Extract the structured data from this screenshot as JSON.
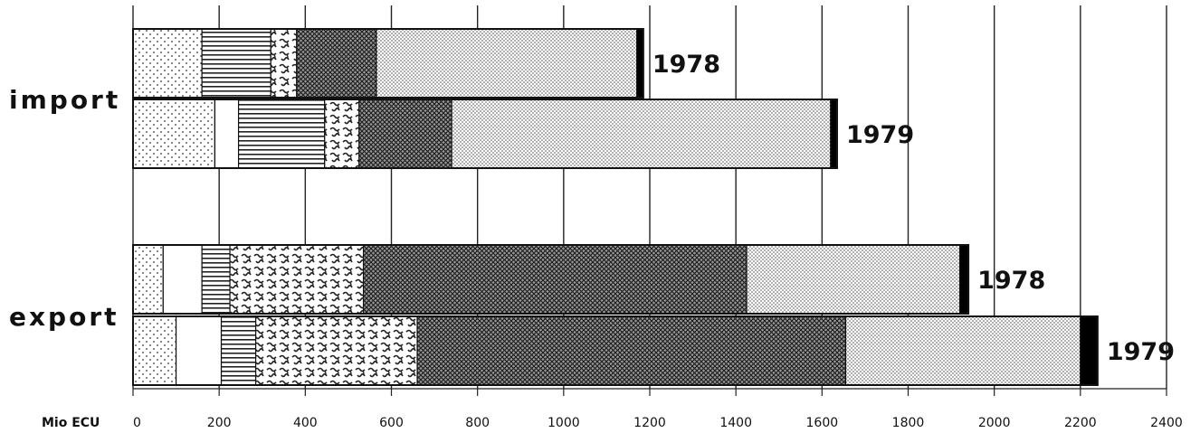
{
  "chart_data": {
    "type": "bar",
    "orientation": "horizontal",
    "stacked": true,
    "title": "",
    "unit_label": "Mio ECU",
    "xlim": [
      0,
      2400
    ],
    "x_ticks": [
      0,
      200,
      400,
      600,
      800,
      1000,
      1200,
      1400,
      1600,
      1800,
      2000,
      2200,
      2400
    ],
    "grid": true,
    "legend": "none",
    "groups": [
      {
        "label": "import",
        "bars": [
          {
            "year": "1978",
            "segments": [
              160,
              0,
              160,
              60,
              185,
              605,
              15
            ]
          },
          {
            "year": "1979",
            "segments": [
              190,
              55,
              200,
              80,
              215,
              880,
              15
            ]
          }
        ]
      },
      {
        "label": "export",
        "bars": [
          {
            "year": "1978",
            "segments": [
              70,
              90,
              65,
              310,
              890,
              495,
              20
            ]
          },
          {
            "year": "1979",
            "segments": [
              100,
              105,
              80,
              375,
              995,
              545,
              40
            ]
          }
        ]
      }
    ],
    "segment_patterns": [
      "sparse-dots",
      "blank",
      "horizontal-lines",
      "squiggles",
      "dense-crosshatch",
      "fine-stipple",
      "solid-black"
    ]
  }
}
